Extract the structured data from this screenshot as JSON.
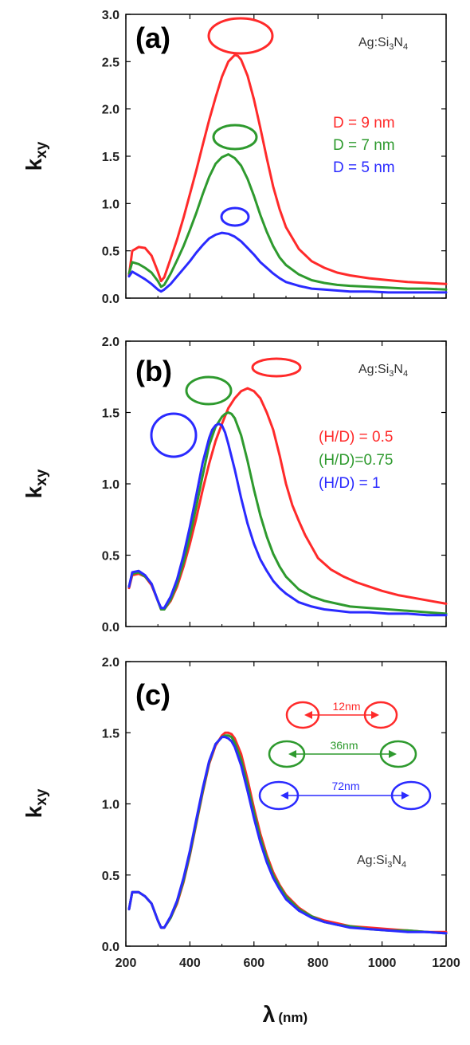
{
  "chart_data": [
    {
      "id": "a",
      "type": "line",
      "panel_label": "(a)",
      "material": "Ag:Si",
      "material_sub1": "3",
      "material_mid": "N",
      "material_sub2": "4",
      "ylabel_main": "k",
      "ylabel_sub": "xy",
      "xlim": [
        200,
        1200
      ],
      "ylim": [
        0,
        3.0
      ],
      "yticks": [
        "0.0",
        "0.5",
        "1.0",
        "1.5",
        "2.0",
        "2.5",
        "3.0"
      ],
      "legend_placement": "right",
      "series": [
        {
          "name": "D = 9 nm",
          "color": "#ff2a2a",
          "x": [
            210,
            220,
            240,
            260,
            280,
            300,
            310,
            320,
            340,
            360,
            380,
            400,
            420,
            440,
            460,
            480,
            500,
            520,
            540,
            550,
            560,
            580,
            600,
            620,
            640,
            660,
            680,
            700,
            740,
            780,
            820,
            860,
            900,
            960,
            1020,
            1080,
            1140,
            1200
          ],
          "y": [
            0.24,
            0.5,
            0.54,
            0.53,
            0.45,
            0.28,
            0.18,
            0.22,
            0.42,
            0.62,
            0.85,
            1.1,
            1.35,
            1.62,
            1.88,
            2.12,
            2.34,
            2.5,
            2.57,
            2.56,
            2.52,
            2.35,
            2.1,
            1.8,
            1.48,
            1.18,
            0.94,
            0.75,
            0.52,
            0.39,
            0.32,
            0.27,
            0.24,
            0.21,
            0.19,
            0.17,
            0.16,
            0.15
          ]
        },
        {
          "name": "D = 7 nm",
          "color": "#2e9a2e",
          "x": [
            210,
            220,
            240,
            260,
            280,
            300,
            310,
            320,
            340,
            360,
            380,
            400,
            420,
            440,
            460,
            480,
            500,
            520,
            530,
            540,
            560,
            580,
            600,
            620,
            640,
            660,
            680,
            700,
            740,
            780,
            820,
            860,
            900,
            960,
            1020,
            1080,
            1140,
            1200
          ],
          "y": [
            0.26,
            0.38,
            0.36,
            0.32,
            0.27,
            0.18,
            0.12,
            0.14,
            0.26,
            0.4,
            0.55,
            0.72,
            0.9,
            1.1,
            1.28,
            1.42,
            1.49,
            1.52,
            1.5,
            1.48,
            1.4,
            1.26,
            1.08,
            0.88,
            0.7,
            0.55,
            0.43,
            0.35,
            0.25,
            0.19,
            0.16,
            0.14,
            0.13,
            0.12,
            0.11,
            0.1,
            0.1,
            0.09
          ]
        },
        {
          "name": "D = 5 nm",
          "color": "#2a2aff",
          "x": [
            210,
            220,
            240,
            260,
            280,
            300,
            310,
            320,
            340,
            360,
            380,
            400,
            420,
            440,
            460,
            480,
            500,
            520,
            540,
            560,
            580,
            600,
            620,
            640,
            660,
            680,
            700,
            740,
            780,
            820,
            860,
            900,
            960,
            1020,
            1080,
            1140,
            1200
          ],
          "y": [
            0.23,
            0.28,
            0.24,
            0.2,
            0.15,
            0.09,
            0.07,
            0.09,
            0.15,
            0.23,
            0.31,
            0.39,
            0.48,
            0.56,
            0.63,
            0.67,
            0.69,
            0.68,
            0.65,
            0.6,
            0.53,
            0.46,
            0.38,
            0.32,
            0.26,
            0.21,
            0.17,
            0.13,
            0.1,
            0.09,
            0.08,
            0.07,
            0.07,
            0.06,
            0.06,
            0.06,
            0.06
          ]
        }
      ]
    },
    {
      "id": "b",
      "type": "line",
      "panel_label": "(b)",
      "material": "Ag:Si",
      "material_sub1": "3",
      "material_mid": "N",
      "material_sub2": "4",
      "ylabel_main": "k",
      "ylabel_sub": "xy",
      "xlim": [
        200,
        1200
      ],
      "ylim": [
        0,
        2.0
      ],
      "yticks": [
        "0.0",
        "0.5",
        "1.0",
        "1.5",
        "2.0"
      ],
      "legend_placement": "right",
      "series": [
        {
          "name": "(H/D) = 0.5",
          "color": "#ff2a2a",
          "x": [
            210,
            220,
            240,
            260,
            280,
            300,
            310,
            320,
            340,
            360,
            380,
            400,
            420,
            440,
            460,
            480,
            500,
            520,
            540,
            560,
            580,
            600,
            620,
            640,
            660,
            680,
            700,
            720,
            740,
            760,
            780,
            800,
            840,
            880,
            920,
            960,
            1000,
            1050,
            1100,
            1150,
            1200
          ],
          "y": [
            0.27,
            0.36,
            0.37,
            0.35,
            0.29,
            0.18,
            0.12,
            0.12,
            0.18,
            0.28,
            0.42,
            0.58,
            0.76,
            0.96,
            1.14,
            1.3,
            1.42,
            1.53,
            1.6,
            1.65,
            1.67,
            1.65,
            1.6,
            1.5,
            1.38,
            1.2,
            1.0,
            0.85,
            0.74,
            0.64,
            0.56,
            0.48,
            0.4,
            0.35,
            0.31,
            0.28,
            0.25,
            0.22,
            0.2,
            0.18,
            0.16
          ]
        },
        {
          "name": "(H/D)=0.75",
          "color": "#2e9a2e",
          "x": [
            210,
            220,
            240,
            260,
            280,
            300,
            310,
            320,
            340,
            360,
            380,
            400,
            420,
            440,
            460,
            480,
            500,
            510,
            520,
            530,
            540,
            560,
            580,
            600,
            620,
            640,
            660,
            680,
            700,
            740,
            780,
            820,
            860,
            900,
            960,
            1020,
            1080,
            1140,
            1200
          ],
          "y": [
            0.28,
            0.37,
            0.38,
            0.35,
            0.3,
            0.18,
            0.12,
            0.12,
            0.19,
            0.3,
            0.45,
            0.63,
            0.84,
            1.06,
            1.27,
            1.4,
            1.47,
            1.49,
            1.5,
            1.49,
            1.46,
            1.34,
            1.16,
            0.96,
            0.78,
            0.63,
            0.51,
            0.42,
            0.35,
            0.26,
            0.21,
            0.18,
            0.16,
            0.14,
            0.13,
            0.12,
            0.11,
            0.1,
            0.09
          ]
        },
        {
          "name": "(H/D) = 1",
          "color": "#2a2aff",
          "x": [
            210,
            220,
            240,
            260,
            280,
            300,
            310,
            320,
            340,
            360,
            380,
            400,
            420,
            440,
            460,
            470,
            480,
            490,
            500,
            510,
            520,
            540,
            560,
            580,
            600,
            620,
            640,
            660,
            680,
            700,
            740,
            780,
            820,
            860,
            900,
            960,
            1020,
            1080,
            1140,
            1200
          ],
          "y": [
            0.28,
            0.38,
            0.39,
            0.36,
            0.3,
            0.18,
            0.13,
            0.13,
            0.21,
            0.33,
            0.5,
            0.7,
            0.92,
            1.15,
            1.32,
            1.38,
            1.41,
            1.42,
            1.41,
            1.36,
            1.28,
            1.1,
            0.9,
            0.72,
            0.58,
            0.47,
            0.39,
            0.32,
            0.27,
            0.23,
            0.17,
            0.14,
            0.12,
            0.11,
            0.1,
            0.1,
            0.09,
            0.09,
            0.08,
            0.08
          ]
        }
      ]
    },
    {
      "id": "c",
      "type": "line",
      "panel_label": "(c)",
      "material": "Ag:Si",
      "material_sub1": "3",
      "material_mid": "N",
      "material_sub2": "4",
      "ylabel_main": "k",
      "ylabel_sub": "xy",
      "xlim": [
        200,
        1200
      ],
      "ylim": [
        0,
        2.0
      ],
      "yticks": [
        "0.0",
        "0.5",
        "1.0",
        "1.5",
        "2.0"
      ],
      "xticks": [
        "200",
        "400",
        "600",
        "800",
        "1000",
        "1200"
      ],
      "legend_placement": "top-right",
      "series": [
        {
          "name": "12nm",
          "color": "#ff2a2a",
          "x": [
            210,
            220,
            240,
            260,
            280,
            300,
            310,
            320,
            340,
            360,
            380,
            400,
            420,
            440,
            460,
            480,
            500,
            510,
            520,
            530,
            540,
            560,
            580,
            600,
            620,
            640,
            660,
            680,
            700,
            740,
            780,
            820,
            860,
            900,
            960,
            1020,
            1080,
            1140,
            1200
          ],
          "y": [
            0.26,
            0.38,
            0.38,
            0.35,
            0.3,
            0.18,
            0.13,
            0.13,
            0.2,
            0.3,
            0.45,
            0.64,
            0.86,
            1.08,
            1.28,
            1.41,
            1.48,
            1.5,
            1.5,
            1.49,
            1.46,
            1.35,
            1.17,
            0.97,
            0.79,
            0.64,
            0.52,
            0.43,
            0.36,
            0.27,
            0.21,
            0.18,
            0.16,
            0.14,
            0.13,
            0.12,
            0.11,
            0.1,
            0.1
          ]
        },
        {
          "name": "36nm",
          "color": "#2e9a2e",
          "x": [
            210,
            220,
            240,
            260,
            280,
            300,
            310,
            320,
            340,
            360,
            380,
            400,
            420,
            440,
            460,
            480,
            500,
            510,
            520,
            530,
            540,
            560,
            580,
            600,
            620,
            640,
            660,
            680,
            700,
            740,
            780,
            820,
            860,
            900,
            960,
            1020,
            1080,
            1140,
            1200
          ],
          "y": [
            0.26,
            0.38,
            0.38,
            0.35,
            0.3,
            0.18,
            0.13,
            0.13,
            0.2,
            0.31,
            0.46,
            0.65,
            0.87,
            1.09,
            1.29,
            1.42,
            1.47,
            1.48,
            1.48,
            1.47,
            1.43,
            1.31,
            1.13,
            0.94,
            0.76,
            0.62,
            0.5,
            0.42,
            0.35,
            0.26,
            0.21,
            0.17,
            0.15,
            0.14,
            0.12,
            0.11,
            0.11,
            0.1,
            0.09
          ]
        },
        {
          "name": "72nm",
          "color": "#2a2aff",
          "x": [
            210,
            220,
            240,
            260,
            280,
            300,
            310,
            320,
            340,
            360,
            380,
            400,
            420,
            440,
            460,
            480,
            500,
            510,
            520,
            530,
            540,
            560,
            580,
            600,
            620,
            640,
            660,
            680,
            700,
            740,
            780,
            820,
            860,
            900,
            960,
            1020,
            1080,
            1140,
            1200
          ],
          "y": [
            0.26,
            0.38,
            0.38,
            0.35,
            0.3,
            0.18,
            0.13,
            0.13,
            0.21,
            0.32,
            0.48,
            0.67,
            0.89,
            1.11,
            1.3,
            1.42,
            1.47,
            1.47,
            1.46,
            1.44,
            1.4,
            1.27,
            1.09,
            0.9,
            0.73,
            0.59,
            0.48,
            0.4,
            0.33,
            0.25,
            0.2,
            0.17,
            0.15,
            0.13,
            0.12,
            0.11,
            0.1,
            0.1,
            0.09
          ]
        }
      ]
    }
  ],
  "shared": {
    "xlabel_main": "λ",
    "xlabel_unit": "(nm)",
    "xticks": [
      "200",
      "400",
      "600",
      "800",
      "1000",
      "1200"
    ]
  }
}
